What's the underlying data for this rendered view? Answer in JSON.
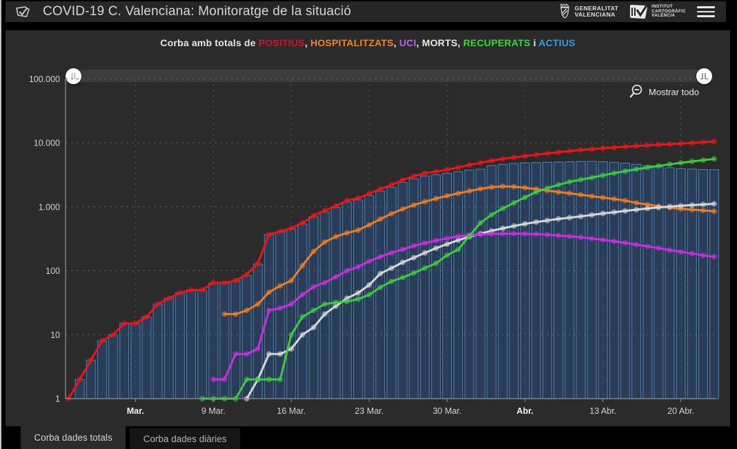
{
  "header": {
    "title": "COVID-19 C. Valenciana: Monitoratge de la situació",
    "gva_logo": {
      "line1": "GENERALITAT",
      "line2": "VALENCIANA"
    },
    "icv_logo": {
      "line1": "INSTITUT",
      "line2": "CARTOGRÀFIC",
      "line3": "VALÈNCIA"
    }
  },
  "subtitle": {
    "prefix": "Corba amb totals de",
    "separator": ", ",
    "conjunction": "i",
    "items": [
      {
        "label": "POSITIUS",
        "color": "#d61326"
      },
      {
        "label": "HOSPITALITZATS",
        "color": "#f08423"
      },
      {
        "label": "UCI",
        "color": "#bb63e8"
      },
      {
        "label": "MORTS",
        "color": "#e8e8e8"
      },
      {
        "label": "RECUPERATS",
        "color": "#36d936"
      },
      {
        "label": "ACTIUS",
        "color": "#2f9fe0"
      }
    ]
  },
  "toolbar": {
    "show_all_label": "Mostrar todo"
  },
  "tabs": [
    {
      "label": "Corba dades totals",
      "active": true
    },
    {
      "label": "Corba dades diàries",
      "active": false
    }
  ],
  "chart_data": {
    "type": "line",
    "y_scale": "log",
    "ylim": [
      1,
      100000
    ],
    "grid": true,
    "y_ticks": [
      {
        "value": 1,
        "label": "1"
      },
      {
        "value": 10,
        "label": "10"
      },
      {
        "value": 100,
        "label": "100"
      },
      {
        "value": 1000,
        "label": "1.000"
      },
      {
        "value": 10000,
        "label": "10.000"
      },
      {
        "value": 100000,
        "label": "100.000"
      }
    ],
    "x_ticks": [
      {
        "day": 6,
        "label": "Mar.",
        "bold": true
      },
      {
        "day": 13,
        "label": "9 Mar.",
        "bold": false
      },
      {
        "day": 20,
        "label": "16 Mar.",
        "bold": false
      },
      {
        "day": 27,
        "label": "23 Mar.",
        "bold": false
      },
      {
        "day": 34,
        "label": "30 Mar.",
        "bold": false
      },
      {
        "day": 41,
        "label": "Abr.",
        "bold": true
      },
      {
        "day": 48,
        "label": "13 Abr.",
        "bold": false
      },
      {
        "day": 55,
        "label": "20 Abr.",
        "bold": false
      }
    ],
    "series": [
      {
        "name": "ACTIUS",
        "type": "bar",
        "color": "#4179b4",
        "fill": "rgba(40,85,150,0.42)",
        "start": 0,
        "values": [
          1,
          2,
          4,
          8,
          10,
          15,
          15,
          19,
          30,
          37,
          45,
          50,
          49,
          64,
          64,
          69,
          84,
          127,
          365,
          403,
          452,
          540,
          699,
          830,
          972,
          1183,
          1281,
          1503,
          1755,
          2017,
          2402,
          2738,
          3025,
          3155,
          3335,
          3545,
          3755,
          3860,
          4400,
          4600,
          4750,
          4850,
          4900,
          4950,
          5000,
          5050,
          5100,
          5100,
          5050,
          4950,
          4800,
          4600,
          4400,
          4200,
          4050,
          3950,
          3880,
          3820,
          3790
        ]
      },
      {
        "name": "HOSPITALITZATS",
        "type": "line",
        "color": "#ef7d23",
        "start": 14,
        "values": [
          21,
          21,
          24,
          30,
          46,
          58,
          70,
          120,
          200,
          280,
          340,
          390,
          430,
          520,
          640,
          780,
          920,
          1060,
          1200,
          1340,
          1480,
          1620,
          1760,
          1900,
          2020,
          2080,
          2050,
          1980,
          1890,
          1790,
          1700,
          1620,
          1540,
          1460,
          1390,
          1320,
          1250,
          1150,
          1080,
          1020,
          970,
          930,
          900,
          875,
          850
        ]
      },
      {
        "name": "MORTS",
        "type": "line",
        "color": "#d8d8d8",
        "start": 16,
        "values": [
          1,
          2,
          5,
          5,
          6,
          10,
          13,
          21,
          28,
          37,
          45,
          60,
          90,
          110,
          135,
          160,
          190,
          225,
          260,
          300,
          340,
          380,
          420,
          460,
          500,
          540,
          575,
          610,
          645,
          675,
          705,
          745,
          785,
          820,
          860,
          900,
          940,
          975,
          1005,
          1035,
          1060,
          1085,
          1110
        ]
      },
      {
        "name": "UCI",
        "type": "line",
        "color": "#c92fe0",
        "start": 13,
        "values": [
          2,
          2,
          5,
          5,
          6,
          24,
          26,
          30,
          42,
          56,
          65,
          80,
          100,
          115,
          140,
          165,
          190,
          215,
          245,
          270,
          295,
          320,
          345,
          360,
          370,
          375,
          378,
          380,
          378,
          373,
          365,
          355,
          345,
          333,
          318,
          303,
          288,
          272,
          256,
          240,
          225,
          210,
          197,
          185,
          174,
          165
        ]
      },
      {
        "name": "RECUPERATS",
        "type": "line",
        "color": "#3ecb3e",
        "start": 12,
        "values": [
          1,
          1,
          1,
          1,
          2,
          2,
          2,
          2,
          10,
          19,
          24,
          30,
          32,
          33,
          36,
          42,
          55,
          68,
          78,
          92,
          110,
          130,
          175,
          215,
          350,
          560,
          750,
          940,
          1150,
          1400,
          1700,
          1950,
          2200,
          2450,
          2650,
          2850,
          3100,
          3350,
          3600,
          3850,
          4100,
          4350,
          4600,
          4850,
          5100,
          5350,
          5600
        ]
      },
      {
        "name": "POSITIUS",
        "type": "line",
        "color": "#ed1515",
        "start": 0,
        "values": [
          1,
          2,
          4,
          8,
          10,
          15,
          15,
          19,
          30,
          37,
          45,
          50,
          50,
          65,
          65,
          70,
          87,
          130,
          370,
          410,
          460,
          558,
          726,
          870,
          1024,
          1250,
          1358,
          1605,
          1900,
          2200,
          2620,
          3000,
          3340,
          3530,
          3800,
          4100,
          4500,
          4870,
          5240,
          5600,
          5900,
          6200,
          6500,
          6800,
          7100,
          7400,
          7700,
          7960,
          8200,
          8450,
          8680,
          8900,
          9100,
          9300,
          9500,
          9700,
          9950,
          10200,
          10500
        ]
      }
    ]
  }
}
